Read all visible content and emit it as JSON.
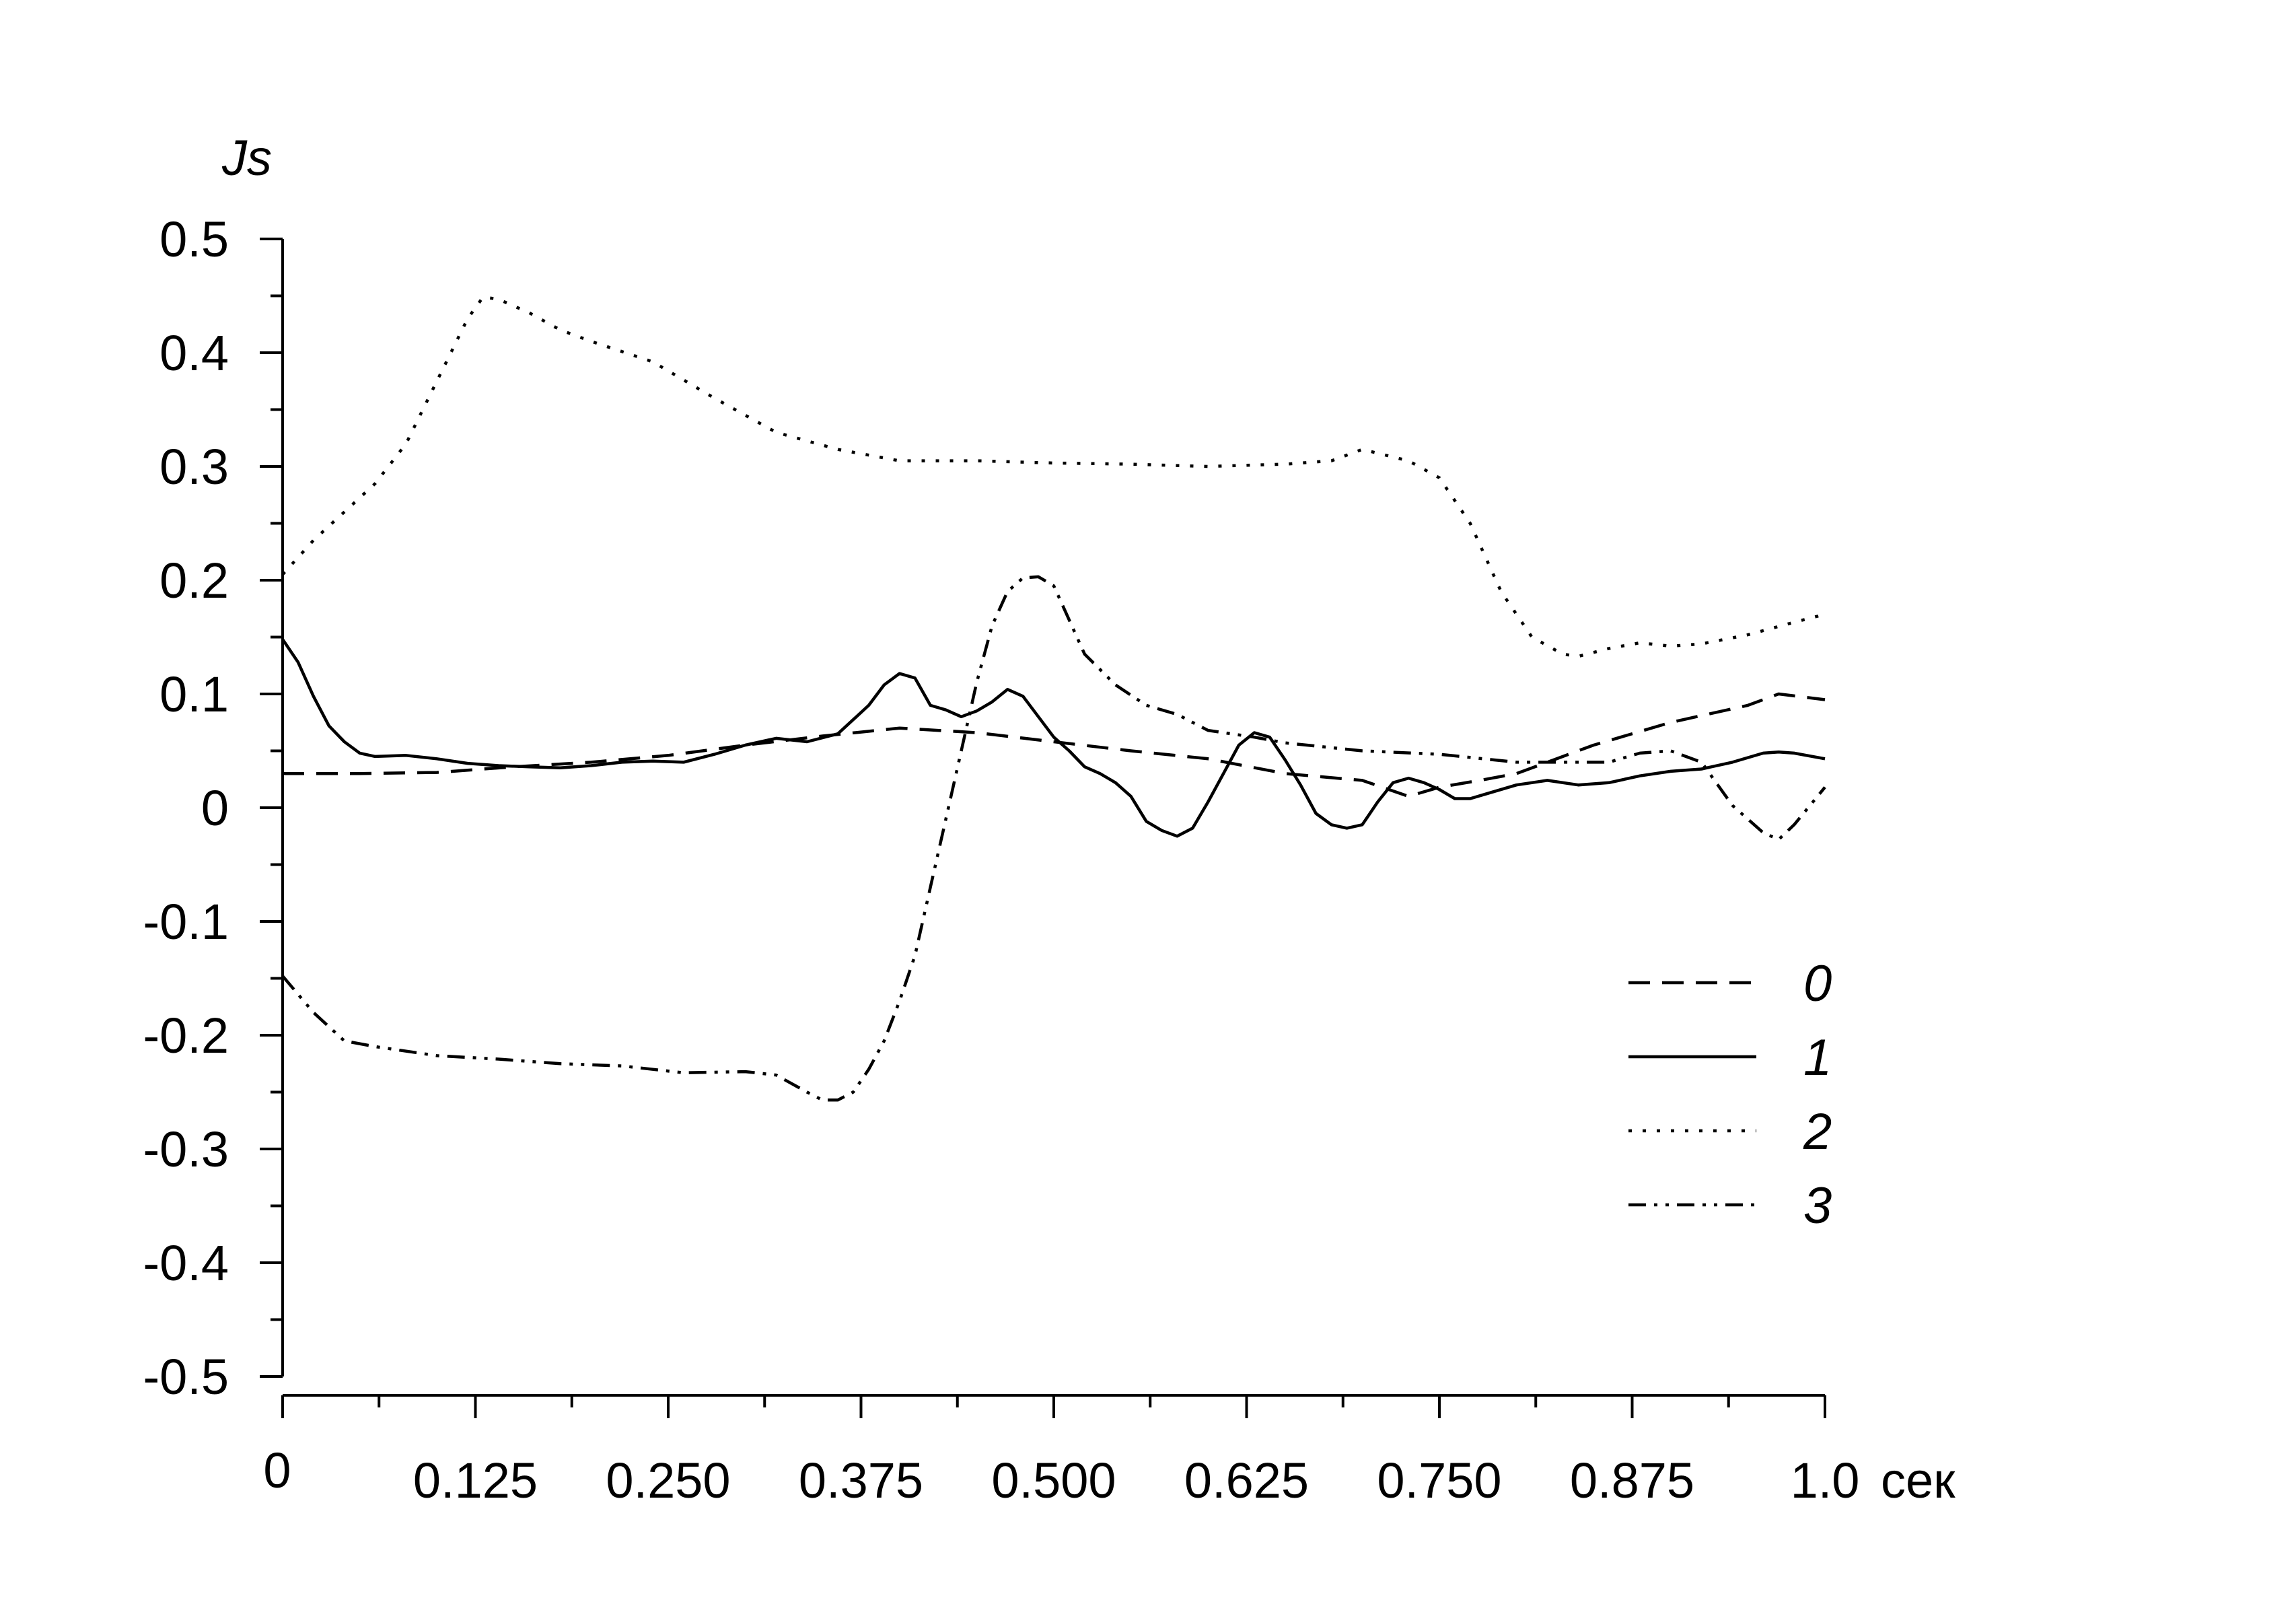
{
  "chart_data": {
    "type": "line",
    "ylabel": "Js",
    "xunit": "сек",
    "xlim": [
      0,
      1.0
    ],
    "ylim": [
      -0.5,
      0.5
    ],
    "x_ticks": [
      {
        "value": 0,
        "label": "0"
      },
      {
        "value": 0.125,
        "label": "0.125"
      },
      {
        "value": 0.25,
        "label": "0.250"
      },
      {
        "value": 0.375,
        "label": "0.375"
      },
      {
        "value": 0.5,
        "label": "0.500"
      },
      {
        "value": 0.625,
        "label": "0.625"
      },
      {
        "value": 0.75,
        "label": "0.750"
      },
      {
        "value": 0.875,
        "label": "0.875"
      },
      {
        "value": 1.0,
        "label": "1.0"
      }
    ],
    "x_minor_step": 0.0625,
    "y_ticks": [
      {
        "value": 0.5,
        "label": "0.5"
      },
      {
        "value": 0.4,
        "label": "0.4"
      },
      {
        "value": 0.3,
        "label": "0.3"
      },
      {
        "value": 0.2,
        "label": "0.2"
      },
      {
        "value": 0.1,
        "label": "0.1"
      },
      {
        "value": 0,
        "label": "0"
      },
      {
        "value": -0.1,
        "label": "-0.1"
      },
      {
        "value": -0.2,
        "label": "-0.2"
      },
      {
        "value": -0.3,
        "label": "-0.3"
      },
      {
        "value": -0.4,
        "label": "-0.4"
      },
      {
        "value": -0.5,
        "label": "-0.5"
      }
    ],
    "y_minor_step": 0.05,
    "grid": false,
    "legend_position": "bottom-right",
    "series": [
      {
        "name": "0",
        "dash": "dashed",
        "points": [
          [
            0,
            0.03
          ],
          [
            0.05,
            0.03
          ],
          [
            0.1,
            0.031
          ],
          [
            0.15,
            0.036
          ],
          [
            0.2,
            0.04
          ],
          [
            0.25,
            0.046
          ],
          [
            0.3,
            0.055
          ],
          [
            0.35,
            0.063
          ],
          [
            0.4,
            0.07
          ],
          [
            0.45,
            0.066
          ],
          [
            0.5,
            0.058
          ],
          [
            0.55,
            0.05
          ],
          [
            0.6,
            0.043
          ],
          [
            0.65,
            0.03
          ],
          [
            0.7,
            0.024
          ],
          [
            0.73,
            0.01
          ],
          [
            0.75,
            0.018
          ],
          [
            0.78,
            0.025
          ],
          [
            0.8,
            0.03
          ],
          [
            0.85,
            0.055
          ],
          [
            0.9,
            0.075
          ],
          [
            0.95,
            0.09
          ],
          [
            0.97,
            0.1
          ],
          [
            1.0,
            0.095
          ]
        ]
      },
      {
        "name": "1",
        "dash": "solid",
        "points": [
          [
            0,
            0.148
          ],
          [
            0.01,
            0.128
          ],
          [
            0.02,
            0.098
          ],
          [
            0.03,
            0.072
          ],
          [
            0.04,
            0.058
          ],
          [
            0.05,
            0.048
          ],
          [
            0.06,
            0.045
          ],
          [
            0.08,
            0.046
          ],
          [
            0.1,
            0.043
          ],
          [
            0.12,
            0.039
          ],
          [
            0.14,
            0.037
          ],
          [
            0.16,
            0.036
          ],
          [
            0.18,
            0.035
          ],
          [
            0.2,
            0.037
          ],
          [
            0.22,
            0.04
          ],
          [
            0.24,
            0.041
          ],
          [
            0.26,
            0.04
          ],
          [
            0.28,
            0.047
          ],
          [
            0.3,
            0.055
          ],
          [
            0.32,
            0.061
          ],
          [
            0.34,
            0.058
          ],
          [
            0.36,
            0.065
          ],
          [
            0.38,
            0.09
          ],
          [
            0.39,
            0.108
          ],
          [
            0.4,
            0.118
          ],
          [
            0.41,
            0.114
          ],
          [
            0.42,
            0.09
          ],
          [
            0.43,
            0.086
          ],
          [
            0.44,
            0.08
          ],
          [
            0.45,
            0.085
          ],
          [
            0.46,
            0.093
          ],
          [
            0.47,
            0.104
          ],
          [
            0.48,
            0.098
          ],
          [
            0.49,
            0.08
          ],
          [
            0.5,
            0.062
          ],
          [
            0.51,
            0.05
          ],
          [
            0.52,
            0.036
          ],
          [
            0.53,
            0.03
          ],
          [
            0.54,
            0.022
          ],
          [
            0.55,
            0.01
          ],
          [
            0.56,
            -0.012
          ],
          [
            0.57,
            -0.02
          ],
          [
            0.58,
            -0.025
          ],
          [
            0.59,
            -0.018
          ],
          [
            0.6,
            0.005
          ],
          [
            0.61,
            0.03
          ],
          [
            0.62,
            0.055
          ],
          [
            0.63,
            0.066
          ],
          [
            0.64,
            0.062
          ],
          [
            0.65,
            0.042
          ],
          [
            0.66,
            0.02
          ],
          [
            0.67,
            -0.005
          ],
          [
            0.68,
            -0.015
          ],
          [
            0.69,
            -0.018
          ],
          [
            0.7,
            -0.015
          ],
          [
            0.71,
            0.005
          ],
          [
            0.72,
            0.022
          ],
          [
            0.73,
            0.026
          ],
          [
            0.74,
            0.022
          ],
          [
            0.75,
            0.016
          ],
          [
            0.76,
            0.008
          ],
          [
            0.77,
            0.008
          ],
          [
            0.78,
            0.012
          ],
          [
            0.8,
            0.02
          ],
          [
            0.82,
            0.024
          ],
          [
            0.84,
            0.02
          ],
          [
            0.86,
            0.022
          ],
          [
            0.88,
            0.028
          ],
          [
            0.9,
            0.032
          ],
          [
            0.92,
            0.034
          ],
          [
            0.94,
            0.04
          ],
          [
            0.96,
            0.048
          ],
          [
            0.97,
            0.049
          ],
          [
            0.98,
            0.048
          ],
          [
            1.0,
            0.043
          ]
        ]
      },
      {
        "name": "2",
        "dash": "dotted",
        "points": [
          [
            0,
            0.205
          ],
          [
            0.02,
            0.235
          ],
          [
            0.04,
            0.26
          ],
          [
            0.06,
            0.285
          ],
          [
            0.08,
            0.32
          ],
          [
            0.1,
            0.375
          ],
          [
            0.12,
            0.43
          ],
          [
            0.13,
            0.449
          ],
          [
            0.14,
            0.447
          ],
          [
            0.16,
            0.435
          ],
          [
            0.18,
            0.42
          ],
          [
            0.2,
            0.41
          ],
          [
            0.24,
            0.392
          ],
          [
            0.28,
            0.36
          ],
          [
            0.32,
            0.33
          ],
          [
            0.36,
            0.315
          ],
          [
            0.4,
            0.305
          ],
          [
            0.45,
            0.305
          ],
          [
            0.5,
            0.303
          ],
          [
            0.55,
            0.302
          ],
          [
            0.6,
            0.3
          ],
          [
            0.65,
            0.302
          ],
          [
            0.68,
            0.305
          ],
          [
            0.7,
            0.315
          ],
          [
            0.73,
            0.305
          ],
          [
            0.75,
            0.29
          ],
          [
            0.77,
            0.25
          ],
          [
            0.79,
            0.19
          ],
          [
            0.81,
            0.15
          ],
          [
            0.83,
            0.135
          ],
          [
            0.84,
            0.133
          ],
          [
            0.86,
            0.14
          ],
          [
            0.88,
            0.145
          ],
          [
            0.9,
            0.142
          ],
          [
            0.92,
            0.144
          ],
          [
            0.95,
            0.152
          ],
          [
            0.98,
            0.163
          ],
          [
            1.0,
            0.17
          ]
        ]
      },
      {
        "name": "3",
        "dash": "dash-dot-dot",
        "points": [
          [
            0,
            -0.148
          ],
          [
            0.02,
            -0.18
          ],
          [
            0.04,
            -0.205
          ],
          [
            0.06,
            -0.21
          ],
          [
            0.1,
            -0.218
          ],
          [
            0.14,
            -0.221
          ],
          [
            0.18,
            -0.225
          ],
          [
            0.22,
            -0.227
          ],
          [
            0.26,
            -0.233
          ],
          [
            0.3,
            -0.232
          ],
          [
            0.32,
            -0.235
          ],
          [
            0.34,
            -0.25
          ],
          [
            0.35,
            -0.257
          ],
          [
            0.36,
            -0.257
          ],
          [
            0.37,
            -0.25
          ],
          [
            0.38,
            -0.23
          ],
          [
            0.39,
            -0.205
          ],
          [
            0.4,
            -0.17
          ],
          [
            0.41,
            -0.13
          ],
          [
            0.42,
            -0.07
          ],
          [
            0.43,
            -0.01
          ],
          [
            0.44,
            0.05
          ],
          [
            0.45,
            0.11
          ],
          [
            0.46,
            0.16
          ],
          [
            0.47,
            0.19
          ],
          [
            0.48,
            0.202
          ],
          [
            0.49,
            0.203
          ],
          [
            0.5,
            0.195
          ],
          [
            0.51,
            0.165
          ],
          [
            0.52,
            0.135
          ],
          [
            0.54,
            0.108
          ],
          [
            0.56,
            0.09
          ],
          [
            0.58,
            0.082
          ],
          [
            0.6,
            0.068
          ],
          [
            0.63,
            0.062
          ],
          [
            0.65,
            0.057
          ],
          [
            0.7,
            0.05
          ],
          [
            0.75,
            0.047
          ],
          [
            0.8,
            0.04
          ],
          [
            0.84,
            0.04
          ],
          [
            0.86,
            0.04
          ],
          [
            0.88,
            0.048
          ],
          [
            0.9,
            0.05
          ],
          [
            0.92,
            0.04
          ],
          [
            0.94,
            0.002
          ],
          [
            0.96,
            -0.022
          ],
          [
            0.97,
            -0.028
          ],
          [
            0.98,
            -0.015
          ],
          [
            1.0,
            0.018
          ]
        ]
      }
    ]
  }
}
